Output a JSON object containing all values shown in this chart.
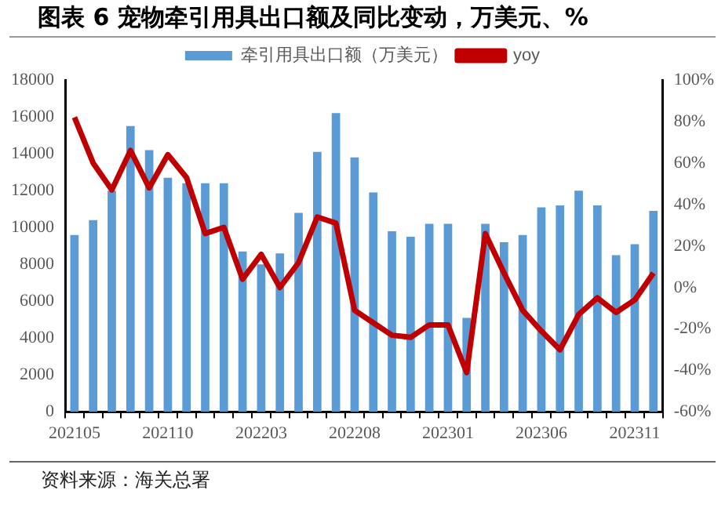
{
  "chart_data": {
    "type": "bar",
    "title": "图表 6 宠物牵引用具出口额及同比变动，万美元、%",
    "categories": [
      "202105",
      null,
      null,
      null,
      null,
      "202110",
      null,
      null,
      null,
      null,
      "202203",
      null,
      null,
      null,
      null,
      "202208",
      null,
      null,
      null,
      null,
      "202301",
      null,
      null,
      null,
      null,
      "202306",
      null,
      null,
      null,
      null,
      "202311",
      null
    ],
    "series": [
      {
        "name": "牵引用具出口额（万美元）",
        "color": "#5b9bd5",
        "values": [
          9600,
          10400,
          12000,
          15500,
          14200,
          12700,
          12400,
          12400,
          12400,
          8700,
          8000,
          8600,
          10800,
          14100,
          16200,
          13800,
          11900,
          9800,
          9500,
          10200,
          10200,
          5100,
          10200,
          9200,
          9600,
          11100,
          11200,
          12000,
          11200,
          8500,
          9100,
          10900
        ]
      },
      {
        "name": "yoy",
        "type": "line",
        "axis": "y2",
        "color": "#c00000",
        "values": [
          82,
          60,
          47,
          66,
          48,
          64,
          53,
          26,
          29,
          4,
          16,
          0,
          12,
          34,
          31,
          -11,
          -17,
          -23,
          -24,
          -18,
          -18,
          -41,
          26,
          7,
          -11,
          -21,
          -30,
          -13,
          -5,
          -12,
          -6,
          7
        ]
      }
    ],
    "ylim": [
      0,
      18000
    ],
    "yticks": [
      0,
      2000,
      4000,
      6000,
      8000,
      10000,
      12000,
      14000,
      16000,
      18000
    ],
    "y2lim": [
      -60,
      100
    ],
    "y2ticks": [
      {
        "value": -60,
        "label": "-60%"
      },
      {
        "value": -40,
        "label": "-40%"
      },
      {
        "value": -20,
        "label": "-20%"
      },
      {
        "value": 0,
        "label": "0%"
      },
      {
        "value": 20,
        "label": "20%"
      },
      {
        "value": 40,
        "label": "40%"
      },
      {
        "value": 60,
        "label": "60%"
      },
      {
        "value": 80,
        "label": "80%"
      },
      {
        "value": 100,
        "label": "100%"
      }
    ],
    "grid": false,
    "legend": "top",
    "marker": "none",
    "annotations": [
      "资料来源：海关总署"
    ]
  }
}
